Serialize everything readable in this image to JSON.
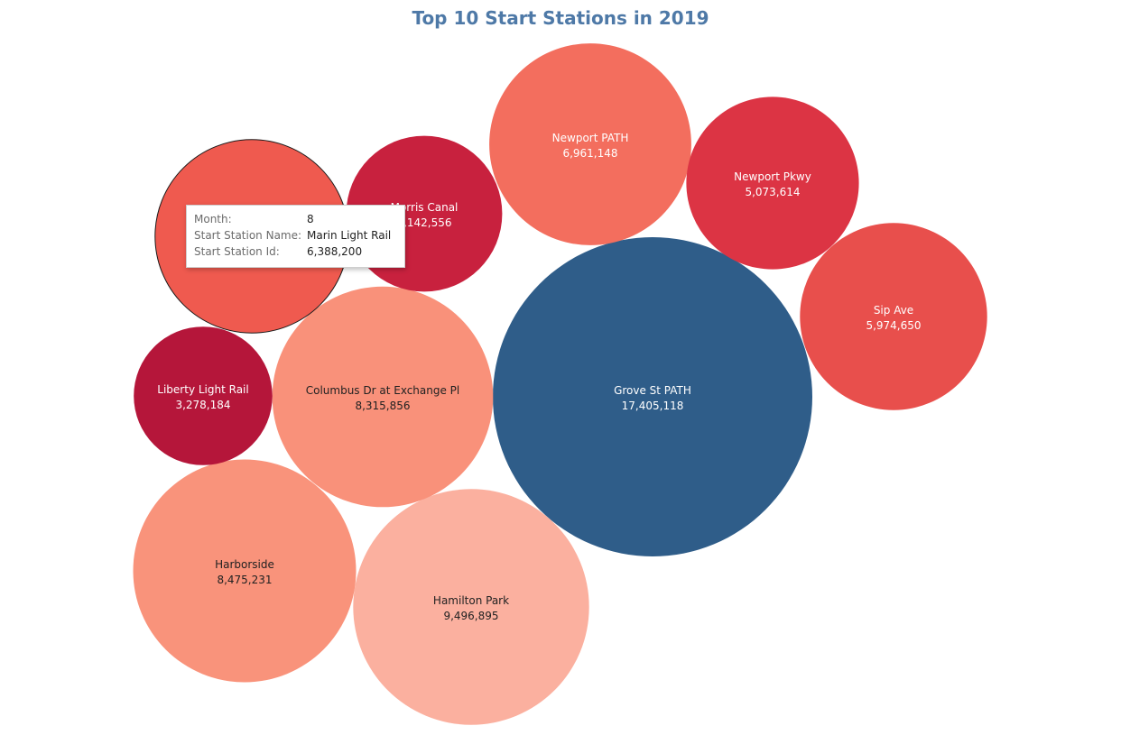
{
  "title": "Top 10 Start Stations in 2019",
  "chart_data": {
    "type": "bubble",
    "title": "Top 10 Start Stations in 2019",
    "measure": "Start Station Id",
    "color_scale": {
      "low": "#b5163a",
      "high": "#fcb09e",
      "highlight": "#2f5d89"
    },
    "points": [
      {
        "name": "Grove St PATH",
        "value": 17405118,
        "label": "17,405,118",
        "color": "#2f5d89"
      },
      {
        "name": "Hamilton Park",
        "value": 9496895,
        "label": "9,496,895",
        "color": "#fbb09f"
      },
      {
        "name": "Harborside",
        "value": 8475231,
        "label": "8,475,231",
        "color": "#f9937b"
      },
      {
        "name": "Columbus Dr at Exchange Pl",
        "value": 8315856,
        "label": "8,315,856",
        "color": "#f9917a"
      },
      {
        "name": "Newport PATH",
        "value": 6961148,
        "label": "6,961,148",
        "color": "#f36e5e"
      },
      {
        "name": "Marin Light Rail",
        "value": 6388200,
        "label": "",
        "color": "#ef5a4f",
        "selected": true
      },
      {
        "name": "Sip Ave",
        "value": 5974650,
        "label": "5,974,650",
        "color": "#e84f4c"
      },
      {
        "name": "Newport Pkwy",
        "value": 5073614,
        "label": "5,073,614",
        "color": "#dc3444"
      },
      {
        "name": "Morris Canal",
        "value": 4142556,
        "label": "4,142,556",
        "color": "#c8213e"
      },
      {
        "name": "Liberty Light Rail",
        "value": 3278184,
        "label": "3,278,184",
        "color": "#b5163a"
      }
    ]
  },
  "tooltip": {
    "rows": [
      {
        "key": "Month:",
        "value": "8"
      },
      {
        "key": "Start Station Name:",
        "value": "Marin Light Rail"
      },
      {
        "key": "Start Station Id:",
        "value": "6,388,200"
      }
    ]
  }
}
